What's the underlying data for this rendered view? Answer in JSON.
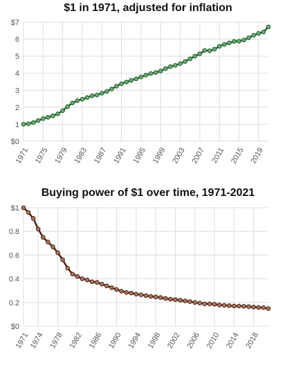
{
  "chart_data": [
    {
      "type": "line",
      "title": "$1 in 1971, adjusted for inflation",
      "xlabel": "",
      "ylabel": "",
      "ylim": [
        0,
        7
      ],
      "grid": true,
      "line_color": "#1f5e2c",
      "marker_fill": "#6faa78",
      "y_ticks": [
        "$0",
        "1",
        "2",
        "3",
        "4",
        "5",
        "6",
        "$7"
      ],
      "x_ticks": [
        "1971",
        "1975",
        "1979",
        "1983",
        "1987",
        "1991",
        "1995",
        "1999",
        "2003",
        "2007",
        "2011",
        "2015",
        "2019"
      ],
      "x": [
        1971,
        1972,
        1973,
        1974,
        1975,
        1976,
        1977,
        1978,
        1979,
        1980,
        1981,
        1982,
        1983,
        1984,
        1985,
        1986,
        1987,
        1988,
        1989,
        1990,
        1991,
        1992,
        1993,
        1994,
        1995,
        1996,
        1997,
        1998,
        1999,
        2000,
        2001,
        2002,
        2003,
        2004,
        2005,
        2006,
        2007,
        2008,
        2009,
        2010,
        2011,
        2012,
        2013,
        2014,
        2015,
        2016,
        2017,
        2018,
        2019,
        2020,
        2021
      ],
      "series": [
        {
          "values": [
            1.0,
            1.03,
            1.1,
            1.22,
            1.33,
            1.41,
            1.5,
            1.61,
            1.8,
            2.04,
            2.25,
            2.39,
            2.47,
            2.57,
            2.67,
            2.72,
            2.82,
            2.93,
            3.07,
            3.24,
            3.38,
            3.48,
            3.58,
            3.67,
            3.78,
            3.89,
            3.98,
            4.04,
            4.13,
            4.27,
            4.39,
            4.46,
            4.56,
            4.69,
            4.84,
            5.0,
            5.14,
            5.34,
            5.32,
            5.41,
            5.58,
            5.69,
            5.78,
            5.87,
            5.88,
            5.95,
            6.08,
            6.23,
            6.34,
            6.42,
            6.72
          ]
        }
      ]
    },
    {
      "type": "line",
      "title": "Buying power of $1 over time, 1971-2021",
      "xlabel": "",
      "ylabel": "",
      "ylim": [
        0,
        1
      ],
      "grid": true,
      "line_color": "#4a1e12",
      "marker_fill": "#a87a62",
      "y_ticks": [
        "$0",
        "0.2",
        "0.4",
        "0.6",
        "0.8",
        "$1"
      ],
      "x_ticks": [
        "1971",
        "1974",
        "1978",
        "1982",
        "1986",
        "1990",
        "1994",
        "1998",
        "2002",
        "2006",
        "2010",
        "2014",
        "2018"
      ],
      "x": [
        1971,
        1972,
        1973,
        1974,
        1975,
        1976,
        1977,
        1978,
        1979,
        1980,
        1981,
        1982,
        1983,
        1984,
        1985,
        1986,
        1987,
        1988,
        1989,
        1990,
        1991,
        1992,
        1993,
        1994,
        1995,
        1996,
        1997,
        1998,
        1999,
        2000,
        2001,
        2002,
        2003,
        2004,
        2005,
        2006,
        2007,
        2008,
        2009,
        2010,
        2011,
        2012,
        2013,
        2014,
        2015,
        2016,
        2017,
        2018,
        2019,
        2020,
        2021
      ],
      "series": [
        {
          "values": [
            1.0,
            0.96,
            0.91,
            0.82,
            0.75,
            0.71,
            0.67,
            0.62,
            0.56,
            0.49,
            0.44,
            0.42,
            0.4,
            0.39,
            0.375,
            0.37,
            0.355,
            0.34,
            0.325,
            0.31,
            0.295,
            0.285,
            0.28,
            0.27,
            0.265,
            0.258,
            0.251,
            0.247,
            0.242,
            0.234,
            0.228,
            0.224,
            0.219,
            0.213,
            0.207,
            0.2,
            0.195,
            0.188,
            0.188,
            0.185,
            0.179,
            0.176,
            0.173,
            0.17,
            0.17,
            0.168,
            0.165,
            0.161,
            0.158,
            0.156,
            0.149
          ]
        }
      ]
    }
  ]
}
